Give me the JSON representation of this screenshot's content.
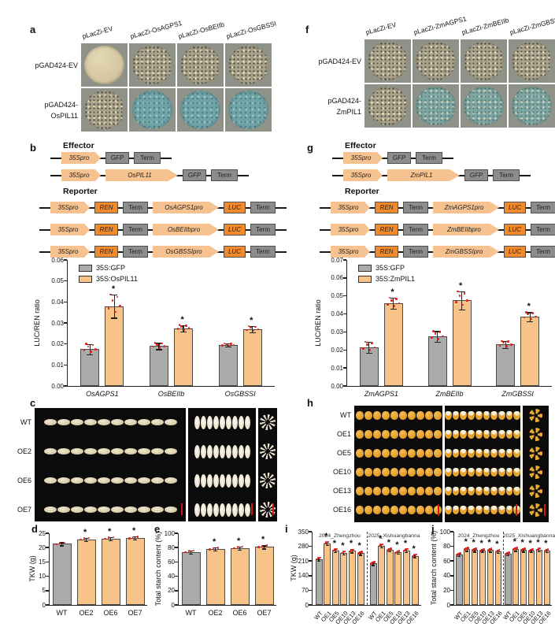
{
  "colors": {
    "bar_gray": "#ABABAB",
    "bar_orange": "#F7C389",
    "bar_border": "#4A4A4A",
    "dot_red": "#E02318",
    "scalebar_red": "#CC1712",
    "construct_peach": "#F6C28F",
    "construct_orange": "#F08A2C",
    "construct_gray": "#8C8C8C",
    "plate_bg": "#8E9289",
    "plate_cream": "#D9CDAA",
    "plate_blue": "#6FA3A6"
  },
  "panels": {
    "a": {
      "label": "a",
      "col_labels": [
        "pLacZi-EV",
        "pLacZi-OsAGPS1",
        "pLacZi-OsBEIIb",
        "pLacZi-OsGBSSI"
      ],
      "row_labels": [
        [
          "pGAD424-EV"
        ],
        [
          "pGAD424-",
          "OsPIL11"
        ]
      ],
      "plates": [
        [
          "cream",
          "colonies",
          "colonies",
          "colonies"
        ],
        [
          "colonies",
          "blue",
          "blue",
          "blue"
        ]
      ]
    },
    "f": {
      "label": "f",
      "col_labels": [
        "pLacZi-EV",
        "pLacZi-ZmAGPS1",
        "pLacZi-ZmBEIIb",
        "pLacZi-ZmGBSSI"
      ],
      "row_labels": [
        [
          "pGAD424-EV"
        ],
        [
          "pGAD424-",
          "ZmPIL1"
        ]
      ],
      "plates": [
        [
          "colonies",
          "colonies",
          "colonies",
          "colonies"
        ],
        [
          "colonies",
          "bluecol",
          "bluecol",
          "bluecol"
        ]
      ]
    },
    "b": {
      "label": "b",
      "effector_title": "Effector",
      "reporter_title": "Reporter",
      "effector_rows": [
        [
          {
            "t": "arrow",
            "l": "35Spro",
            "w": 50
          },
          {
            "t": "gbox",
            "l": "GFP",
            "w": 30,
            "it": true
          },
          {
            "t": "gbox",
            "l": "Term",
            "w": 34
          }
        ],
        [
          {
            "t": "arrow",
            "l": "35Spro",
            "w": 50
          },
          {
            "t": "arrow",
            "l": "OsPIL11",
            "w": 92
          },
          {
            "t": "gbox",
            "l": "GFP",
            "w": 30,
            "it": true
          },
          {
            "t": "gbox",
            "l": "Term",
            "w": 34
          }
        ]
      ],
      "reporter_rows": [
        [
          {
            "t": "arrow",
            "l": "35Spro",
            "w": 50
          },
          {
            "t": "obox",
            "l": "REN",
            "w": 30,
            "it": true
          },
          {
            "t": "gbox",
            "l": "Term",
            "w": 32
          },
          {
            "t": "arrow",
            "l": "OsAGPS1pro",
            "w": 84
          },
          {
            "t": "obox",
            "l": "LUC",
            "w": 28,
            "it": true
          },
          {
            "t": "gbox",
            "l": "Term",
            "w": 32
          }
        ],
        [
          {
            "t": "arrow",
            "l": "35Spro",
            "w": 50
          },
          {
            "t": "obox",
            "l": "REN",
            "w": 30,
            "it": true
          },
          {
            "t": "gbox",
            "l": "Term",
            "w": 32
          },
          {
            "t": "arrow",
            "l": "OsBEIIbpro",
            "w": 84
          },
          {
            "t": "obox",
            "l": "LUC",
            "w": 28,
            "it": true
          },
          {
            "t": "gbox",
            "l": "Term",
            "w": 32
          }
        ],
        [
          {
            "t": "arrow",
            "l": "35Spro",
            "w": 50
          },
          {
            "t": "obox",
            "l": "REN",
            "w": 30,
            "it": true
          },
          {
            "t": "gbox",
            "l": "Term",
            "w": 32
          },
          {
            "t": "arrow",
            "l": "OsGBSSIpro",
            "w": 84
          },
          {
            "t": "obox",
            "l": "LUC",
            "w": 28,
            "it": true
          },
          {
            "t": "gbox",
            "l": "Term",
            "w": 32
          }
        ]
      ],
      "chart": {
        "type": "bar",
        "y_label": "LUC/REN ratio",
        "y_max": 0.06,
        "y_ticks": [
          "0.00",
          "0.01",
          "0.02",
          "0.03",
          "0.04",
          "0.05",
          "0.06"
        ],
        "legend": [
          {
            "label": "35S:GFP",
            "series": "gray"
          },
          {
            "label": "35S:OsPIL11",
            "series": "orange"
          }
        ],
        "groups": [
          {
            "label": "OsAGPS1",
            "bars": [
              {
                "series": "gray",
                "value": 0.0175,
                "err": 0.0025
              },
              {
                "series": "orange",
                "value": 0.038,
                "err": 0.0055,
                "star": true
              }
            ]
          },
          {
            "label": "OsBEIIb",
            "bars": [
              {
                "series": "gray",
                "value": 0.019,
                "err": 0.0015
              },
              {
                "series": "orange",
                "value": 0.0275,
                "err": 0.0015,
                "star": true
              }
            ]
          },
          {
            "label": "OsGBSSI",
            "bars": [
              {
                "series": "gray",
                "value": 0.0195,
                "err": 0.0008
              },
              {
                "series": "orange",
                "value": 0.027,
                "err": 0.0015,
                "star": true
              }
            ]
          }
        ]
      }
    },
    "g": {
      "label": "g",
      "effector_title": "Effector",
      "reporter_title": "Reporter",
      "effector_rows": [
        [
          {
            "t": "arrow",
            "l": "35Spro",
            "w": 50
          },
          {
            "t": "gbox",
            "l": "GFP",
            "w": 30,
            "it": true
          },
          {
            "t": "gbox",
            "l": "Term",
            "w": 34
          }
        ],
        [
          {
            "t": "arrow",
            "l": "35Spro",
            "w": 50
          },
          {
            "t": "arrow",
            "l": "ZmPIL1",
            "w": 92
          },
          {
            "t": "gbox",
            "l": "GFP",
            "w": 30,
            "it": true
          },
          {
            "t": "gbox",
            "l": "Term",
            "w": 34
          }
        ]
      ],
      "reporter_rows": [
        [
          {
            "t": "arrow",
            "l": "35Spro",
            "w": 50
          },
          {
            "t": "obox",
            "l": "REN",
            "w": 30,
            "it": true
          },
          {
            "t": "gbox",
            "l": "Term",
            "w": 32
          },
          {
            "t": "arrow",
            "l": "ZmAGPS1pro",
            "w": 84
          },
          {
            "t": "obox",
            "l": "LUC",
            "w": 28,
            "it": true
          },
          {
            "t": "gbox",
            "l": "Term",
            "w": 32
          }
        ],
        [
          {
            "t": "arrow",
            "l": "35Spro",
            "w": 50
          },
          {
            "t": "obox",
            "l": "REN",
            "w": 30,
            "it": true
          },
          {
            "t": "gbox",
            "l": "Term",
            "w": 32
          },
          {
            "t": "arrow",
            "l": "ZmBEIIbpro",
            "w": 84
          },
          {
            "t": "obox",
            "l": "LUC",
            "w": 28,
            "it": true
          },
          {
            "t": "gbox",
            "l": "Term",
            "w": 32
          }
        ],
        [
          {
            "t": "arrow",
            "l": "35Spro",
            "w": 50
          },
          {
            "t": "obox",
            "l": "REN",
            "w": 30,
            "it": true
          },
          {
            "t": "gbox",
            "l": "Term",
            "w": 32
          },
          {
            "t": "arrow",
            "l": "ZmGBSSIpro",
            "w": 84
          },
          {
            "t": "obox",
            "l": "LUC",
            "w": 28,
            "it": true
          },
          {
            "t": "gbox",
            "l": "Term",
            "w": 32
          }
        ]
      ],
      "chart": {
        "type": "bar",
        "y_label": "LUC/REN ratio",
        "y_max": 0.07,
        "y_ticks": [
          "0.00",
          "0.01",
          "0.02",
          "0.03",
          "0.04",
          "0.05",
          "0.06",
          "0.07"
        ],
        "legend": [
          {
            "label": "35S:GFP",
            "series": "gray"
          },
          {
            "label": "35S:ZmPIL1",
            "series": "orange"
          }
        ],
        "groups": [
          {
            "label": "ZmAGPS1",
            "bars": [
              {
                "series": "gray",
                "value": 0.0215,
                "err": 0.003
              },
              {
                "series": "orange",
                "value": 0.046,
                "err": 0.003,
                "star": true
              }
            ]
          },
          {
            "label": "ZmBEIIb",
            "bars": [
              {
                "series": "gray",
                "value": 0.0275,
                "err": 0.003
              },
              {
                "series": "orange",
                "value": 0.0475,
                "err": 0.005,
                "star": true
              }
            ]
          },
          {
            "label": "ZmGBSSI",
            "bars": [
              {
                "series": "gray",
                "value": 0.023,
                "err": 0.002
              },
              {
                "series": "orange",
                "value": 0.0385,
                "err": 0.0025,
                "star": true
              }
            ]
          }
        ]
      }
    },
    "c": {
      "label": "c",
      "type": "rice",
      "row_labels": [
        "WT",
        "OE2",
        "OE6",
        "OE7"
      ]
    },
    "h": {
      "label": "h",
      "type": "maize",
      "row_labels": [
        "WT",
        "OE1",
        "OE5",
        "OE10",
        "OE13",
        "OE16"
      ]
    },
    "d": {
      "label": "d",
      "chart": {
        "type": "bar",
        "y_label": "TKW (g)",
        "y_max": 25,
        "y_ticks": [
          "0",
          "5",
          "10",
          "15",
          "20",
          "25"
        ],
        "groups": [
          {
            "bars": [
              {
                "label": "WT",
                "series": "gray",
                "value": 21.3,
                "err": 0.2
              }
            ]
          },
          {
            "bars": [
              {
                "label": "OE2",
                "series": "orange",
                "value": 22.9,
                "err": 0.3,
                "star": true
              }
            ]
          },
          {
            "bars": [
              {
                "label": "OE6",
                "series": "orange",
                "value": 23.2,
                "err": 0.25,
                "star": true
              }
            ]
          },
          {
            "bars": [
              {
                "label": "OE7",
                "series": "orange",
                "value": 23.3,
                "err": 0.3,
                "star": true
              }
            ]
          }
        ]
      }
    },
    "e": {
      "label": "e",
      "chart": {
        "type": "bar",
        "y_label": "Total starch content (%)",
        "y_max": 100,
        "y_ticks": [
          "0",
          "20",
          "40",
          "60",
          "80",
          "100"
        ],
        "groups": [
          {
            "bars": [
              {
                "label": "WT",
                "series": "gray",
                "value": 74,
                "err": 0.8
              }
            ]
          },
          {
            "bars": [
              {
                "label": "OE2",
                "series": "orange",
                "value": 78,
                "err": 1.2,
                "star": true
              }
            ]
          },
          {
            "bars": [
              {
                "label": "OE6",
                "series": "orange",
                "value": 79.5,
                "err": 1,
                "star": true
              }
            ]
          },
          {
            "bars": [
              {
                "label": "OE7",
                "series": "orange",
                "value": 81,
                "err": 1.5,
                "star": true
              }
            ]
          }
        ]
      }
    },
    "i": {
      "label": "i",
      "chart": {
        "type": "bar",
        "y_label": "TKW (g)",
        "y_max": 350,
        "y_ticks": [
          "0",
          "70",
          "140",
          "210",
          "280",
          "350"
        ],
        "groups": [
          {
            "title": "2024_Zhengzhou",
            "bars": [
              {
                "label": "WT",
                "series": "gray",
                "value": 220,
                "err": 4
              },
              {
                "label": "OE1",
                "series": "orange",
                "value": 295,
                "err": 5,
                "star": true
              },
              {
                "label": "OE5",
                "series": "orange",
                "value": 261,
                "err": 5,
                "star": true
              },
              {
                "label": "OE10",
                "series": "orange",
                "value": 250,
                "err": 5,
                "star": true
              },
              {
                "label": "OE13",
                "series": "orange",
                "value": 258,
                "err": 5,
                "star": true
              },
              {
                "label": "OE16",
                "series": "orange",
                "value": 247,
                "err": 5,
                "star": true
              }
            ]
          },
          {
            "title": "2025_Xishuangbanna",
            "bars": [
              {
                "label": "WT",
                "series": "gray",
                "value": 198,
                "err": 4
              },
              {
                "label": "OE1",
                "series": "orange",
                "value": 284,
                "err": 5,
                "star": true
              },
              {
                "label": "OE5",
                "series": "orange",
                "value": 263,
                "err": 6,
                "star": true
              },
              {
                "label": "OE10",
                "series": "orange",
                "value": 252,
                "err": 7,
                "star": true
              },
              {
                "label": "OE13",
                "series": "orange",
                "value": 261,
                "err": 6,
                "star": true
              },
              {
                "label": "OE16",
                "series": "orange",
                "value": 234,
                "err": 8,
                "star": true
              }
            ]
          }
        ]
      }
    },
    "j": {
      "label": "j",
      "chart": {
        "type": "bar",
        "y_label": "Total starch content (%)",
        "y_max": 100,
        "y_ticks": [
          "0",
          "20",
          "40",
          "60",
          "80",
          "100"
        ],
        "groups": [
          {
            "title": "2024_Zhengzhou",
            "bars": [
              {
                "label": "WT",
                "series": "gray",
                "value": 69,
                "err": 1
              },
              {
                "label": "OE1",
                "series": "orange",
                "value": 76,
                "err": 1,
                "star": true
              },
              {
                "label": "OE5",
                "series": "orange",
                "value": 75,
                "err": 1,
                "star": true
              },
              {
                "label": "OE10",
                "series": "orange",
                "value": 74,
                "err": 1,
                "star": true
              },
              {
                "label": "OE13",
                "series": "orange",
                "value": 75,
                "err": 1,
                "star": true
              },
              {
                "label": "OE16",
                "series": "orange",
                "value": 73,
                "err": 1,
                "star": true
              }
            ]
          },
          {
            "title": "2025_Xishuangbanna",
            "bars": [
              {
                "label": "WT",
                "series": "gray",
                "value": 70,
                "err": 1
              },
              {
                "label": "OE1",
                "series": "orange",
                "value": 76,
                "err": 1,
                "star": true
              },
              {
                "label": "OE5",
                "series": "orange",
                "value": 75,
                "err": 1,
                "star": true
              },
              {
                "label": "OE10",
                "series": "orange",
                "value": 74,
                "err": 1,
                "star": true
              },
              {
                "label": "OE13",
                "series": "orange",
                "value": 75.5,
                "err": 1,
                "star": true
              },
              {
                "label": "OE16",
                "series": "orange",
                "value": 74,
                "err": 1,
                "star": true
              }
            ]
          }
        ]
      }
    }
  }
}
